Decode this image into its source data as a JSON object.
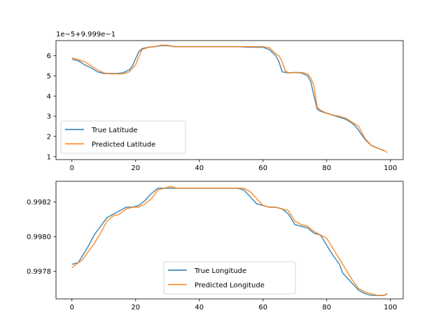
{
  "chart_data": [
    {
      "type": "line",
      "offset_label": "1e−5+9.999e−1",
      "xlim": [
        -5,
        104
      ],
      "ylim": [
        0.85,
        6.75
      ],
      "xticks": [
        0,
        20,
        40,
        60,
        80,
        100
      ],
      "xtick_labels": [
        "0",
        "20",
        "40",
        "60",
        "80",
        "100"
      ],
      "yticks": [
        1,
        2,
        3,
        4,
        5,
        6
      ],
      "ytick_labels": [
        "1",
        "2",
        "3",
        "4",
        "5",
        "6"
      ],
      "legend_position": "lower left",
      "series": [
        {
          "name": "True Latitude",
          "color": "#1f77b4",
          "x": [
            0,
            2,
            4,
            6,
            8,
            10,
            12,
            14,
            16,
            18,
            19,
            20,
            21,
            22,
            24,
            26,
            28,
            30,
            32,
            36,
            40,
            44,
            48,
            52,
            56,
            58,
            60,
            62,
            64,
            65,
            66,
            68,
            70,
            72,
            74,
            75,
            76,
            77,
            78,
            80,
            82,
            84,
            86,
            88,
            89,
            90,
            92,
            94,
            96,
            98
          ],
          "y": [
            5.82,
            5.75,
            5.55,
            5.4,
            5.2,
            5.12,
            5.12,
            5.12,
            5.15,
            5.3,
            5.5,
            5.85,
            6.2,
            6.35,
            6.42,
            6.45,
            6.5,
            6.5,
            6.45,
            6.45,
            6.45,
            6.45,
            6.45,
            6.45,
            6.42,
            6.42,
            6.42,
            6.3,
            6.0,
            5.7,
            5.2,
            5.15,
            5.17,
            5.15,
            5.0,
            4.7,
            4.0,
            3.35,
            3.25,
            3.15,
            3.05,
            2.95,
            2.85,
            2.65,
            2.5,
            2.3,
            1.85,
            1.55,
            1.42,
            1.3
          ]
        },
        {
          "name": "Predicted Latitude",
          "color": "#ff7f0e",
          "x": [
            0,
            2,
            4,
            6,
            8,
            10,
            12,
            14,
            16,
            18,
            20,
            21,
            22,
            24,
            26,
            28,
            30,
            32,
            36,
            40,
            44,
            48,
            52,
            56,
            58,
            60,
            62,
            64,
            65,
            66,
            67,
            68,
            70,
            72,
            74,
            75,
            76,
            77,
            78,
            80,
            82,
            84,
            86,
            88,
            90,
            92,
            94,
            96,
            98,
            99
          ],
          "y": [
            5.9,
            5.8,
            5.7,
            5.5,
            5.3,
            5.15,
            5.1,
            5.1,
            5.1,
            5.2,
            5.55,
            5.95,
            6.3,
            6.42,
            6.45,
            6.52,
            6.52,
            6.45,
            6.45,
            6.45,
            6.45,
            6.45,
            6.45,
            6.45,
            6.45,
            6.45,
            6.4,
            6.1,
            6.0,
            5.7,
            5.25,
            5.15,
            5.17,
            5.17,
            5.1,
            4.9,
            4.5,
            3.45,
            3.3,
            3.15,
            3.05,
            3.0,
            2.9,
            2.7,
            2.5,
            1.9,
            1.55,
            1.42,
            1.3,
            1.2
          ]
        }
      ]
    },
    {
      "type": "line",
      "xlim": [
        -5,
        104
      ],
      "ylim": [
        0.99764,
        0.99832
      ],
      "xticks": [
        0,
        20,
        40,
        60,
        80,
        100
      ],
      "xtick_labels": [
        "0",
        "20",
        "40",
        "60",
        "80",
        "100"
      ],
      "yticks": [
        0.9978,
        0.998,
        0.9982
      ],
      "ytick_labels": [
        "0.9978",
        "0.9980",
        "0.9982"
      ],
      "legend_position": "lower center",
      "series": [
        {
          "name": "True Longitude",
          "color": "#1f77b4",
          "x": [
            0,
            2,
            3,
            5,
            7,
            9,
            11,
            13,
            15,
            17,
            19,
            21,
            23,
            25,
            27,
            29,
            31,
            33,
            36,
            40,
            44,
            48,
            52,
            54,
            56,
            58,
            60,
            62,
            64,
            66,
            68,
            70,
            72,
            74,
            76,
            78,
            80,
            82,
            84,
            85,
            86,
            88,
            90,
            92,
            94,
            96,
            98,
            99
          ],
          "y": [
            0.99784,
            0.99785,
            0.99788,
            0.99794,
            0.99801,
            0.99806,
            0.99811,
            0.99813,
            0.99815,
            0.99817,
            0.99817,
            0.99818,
            0.99821,
            0.99825,
            0.99828,
            0.99828,
            0.99828,
            0.99828,
            0.99828,
            0.99828,
            0.99828,
            0.99828,
            0.99828,
            0.99827,
            0.99823,
            0.99819,
            0.99818,
            0.99817,
            0.99817,
            0.99816,
            0.99813,
            0.99807,
            0.99806,
            0.99805,
            0.99802,
            0.99801,
            0.99795,
            0.99789,
            0.99784,
            0.99779,
            0.99777,
            0.99773,
            0.99769,
            0.99767,
            0.99766,
            0.99766,
            0.99766,
            0.99767
          ]
        },
        {
          "name": "Predicted Longitude",
          "color": "#ff7f0e",
          "x": [
            0,
            2,
            3,
            5,
            7,
            9,
            11,
            13,
            15,
            17,
            19,
            21,
            23,
            25,
            27,
            29,
            31,
            33,
            36,
            40,
            44,
            48,
            52,
            54,
            56,
            58,
            60,
            62,
            64,
            66,
            68,
            70,
            72,
            74,
            76,
            78,
            80,
            82,
            84,
            86,
            88,
            90,
            92,
            94,
            96,
            98,
            99
          ],
          "y": [
            0.99782,
            0.99785,
            0.99786,
            0.99791,
            0.99796,
            0.99802,
            0.99809,
            0.99812,
            0.99813,
            0.99816,
            0.99817,
            0.99817,
            0.99819,
            0.99822,
            0.99827,
            0.99828,
            0.99829,
            0.99828,
            0.99828,
            0.99828,
            0.99828,
            0.99828,
            0.99828,
            0.99828,
            0.99826,
            0.99822,
            0.99818,
            0.99817,
            0.99817,
            0.99816,
            0.99815,
            0.99809,
            0.99807,
            0.99806,
            0.99803,
            0.99801,
            0.99799,
            0.99793,
            0.99787,
            0.99781,
            0.99775,
            0.9977,
            0.99768,
            0.99767,
            0.99766,
            0.99766,
            0.99767
          ]
        }
      ]
    }
  ]
}
